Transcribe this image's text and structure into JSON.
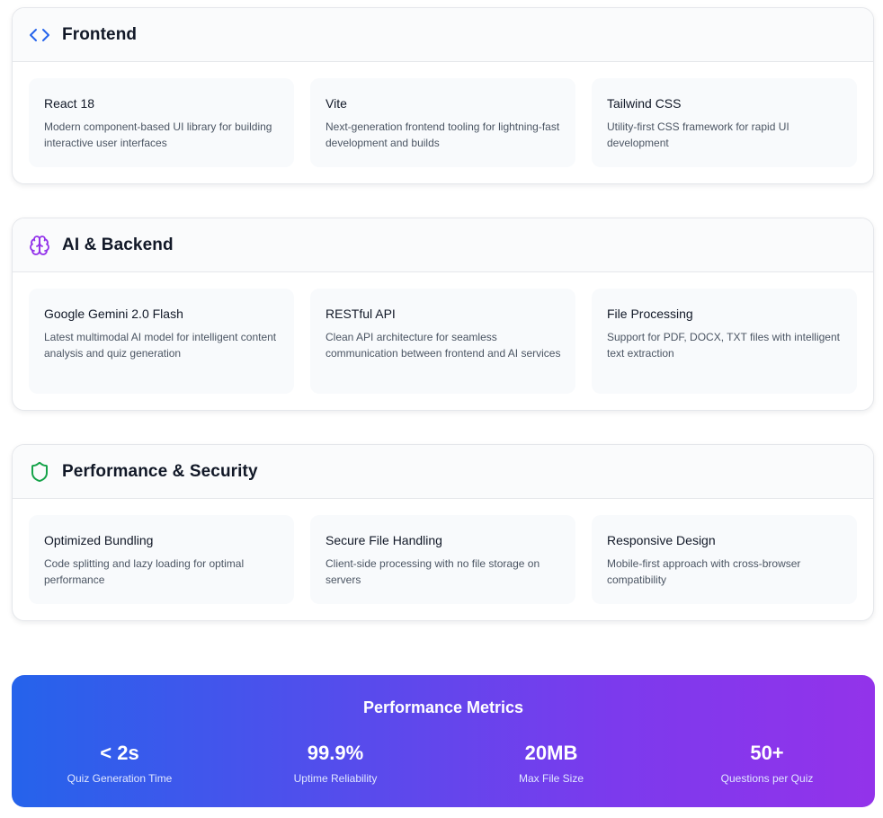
{
  "sections": [
    {
      "title": "Frontend",
      "icon": "code-icon",
      "icon_color": "#2563eb",
      "items": [
        {
          "title": "React 18",
          "desc": "Modern component-based UI library for building interactive user interfaces"
        },
        {
          "title": "Vite",
          "desc": "Next-generation frontend tooling for lightning-fast development and builds"
        },
        {
          "title": "Tailwind CSS",
          "desc": "Utility-first CSS framework for rapid UI development"
        }
      ]
    },
    {
      "title": "AI & Backend",
      "icon": "brain-icon",
      "icon_color": "#9333ea",
      "items": [
        {
          "title": "Google Gemini 2.0 Flash",
          "desc": "Latest multimodal AI model for intelligent content analysis and quiz generation"
        },
        {
          "title": "RESTful API",
          "desc": "Clean API architecture for seamless communication between frontend and AI services"
        },
        {
          "title": "File Processing",
          "desc": "Support for PDF, DOCX, TXT files with intelligent text extraction"
        }
      ]
    },
    {
      "title": "Performance & Security",
      "icon": "shield-icon",
      "icon_color": "#16a34a",
      "items": [
        {
          "title": "Optimized Bundling",
          "desc": "Code splitting and lazy loading for optimal performance"
        },
        {
          "title": "Secure File Handling",
          "desc": "Client-side processing with no file storage on servers"
        },
        {
          "title": "Responsive Design",
          "desc": "Mobile-first approach with cross-browser compatibility"
        }
      ]
    }
  ],
  "metrics": {
    "title": "Performance Metrics",
    "gradient": [
      "#2563eb",
      "#9333ea"
    ],
    "items": [
      {
        "value": "< 2s",
        "label": "Quiz Generation Time"
      },
      {
        "value": "99.9%",
        "label": "Uptime Reliability"
      },
      {
        "value": "20MB",
        "label": "Max File Size"
      },
      {
        "value": "50+",
        "label": "Questions per Quiz"
      }
    ]
  }
}
